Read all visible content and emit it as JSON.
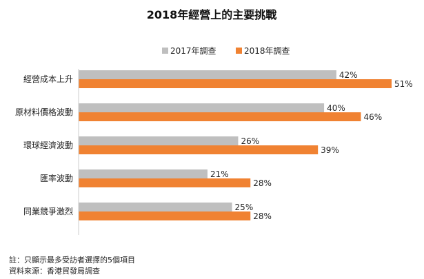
{
  "chart_data": {
    "type": "bar",
    "orientation": "horizontal",
    "title": "2018年經營上的主要挑戰",
    "categories": [
      "經營成本上升",
      "原材料價格波動",
      "環球經濟波動",
      "匯率波動",
      "同業競爭激烈"
    ],
    "series": [
      {
        "name": "2017年調查",
        "values": [
          42,
          40,
          26,
          21,
          25
        ],
        "value_labels": [
          "42%",
          "40%",
          "26%",
          "21%",
          "25%"
        ],
        "color": "#bfbfbf"
      },
      {
        "name": "2018年調查",
        "values": [
          51,
          46,
          39,
          28,
          28
        ],
        "value_labels": [
          "51%",
          "46%",
          "39%",
          "28%",
          "28%"
        ],
        "color": "#f08232"
      }
    ],
    "xlim": [
      0,
      100
    ],
    "unit": "%",
    "legend_position": "top-center",
    "grid": false
  },
  "notes": {
    "note": "註：只顯示最多受訪者選擇的5個項目",
    "source": "資料來源：香港貿發局調查"
  }
}
